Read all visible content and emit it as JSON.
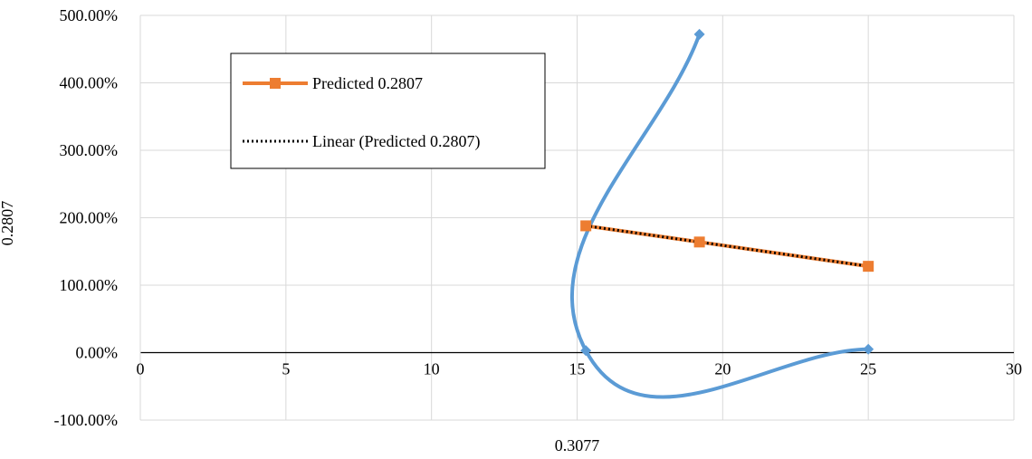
{
  "chart_data": {
    "type": "scatter",
    "xlabel": "0.3077",
    "ylabel": "0.2807",
    "xlim": [
      0,
      30
    ],
    "ylim": [
      -1.0,
      5.0
    ],
    "x_ticks": [
      "0",
      "5",
      "10",
      "15",
      "20",
      "25",
      "30"
    ],
    "y_ticks": [
      "500.00%",
      "400.00%",
      "300.00%",
      "200.00%",
      "100.00%",
      "0.00%",
      "-100.00%"
    ],
    "grid": true,
    "series": [
      {
        "name": "",
        "style": "smooth-line-diamond-markers",
        "color": "#5B9BD5",
        "x": [
          19.2,
          15.3,
          25.0
        ],
        "y": [
          4.72,
          0.03,
          0.05
        ]
      },
      {
        "name": "Predicted 0.2807",
        "style": "line-square-markers",
        "color": "#ED7D31",
        "x": [
          15.3,
          19.2,
          25.0
        ],
        "y": [
          1.88,
          1.64,
          1.28
        ]
      }
    ],
    "trendline": {
      "name": "Linear (Predicted 0.2807)",
      "style": "dotted",
      "color": "#000000",
      "of_series": "Predicted 0.2807"
    },
    "legend": {
      "placement": "top-left",
      "entries": [
        "Predicted 0.2807",
        "Linear (Predicted 0.2807)"
      ]
    }
  }
}
